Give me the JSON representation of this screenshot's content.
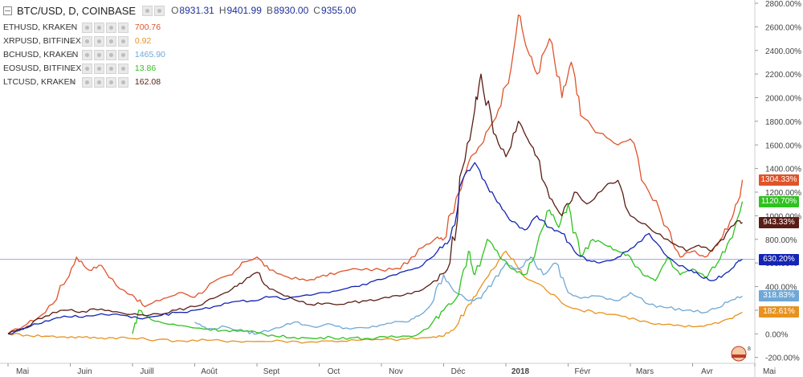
{
  "header": {
    "symbol": "BTC/USD, D, COINBASE",
    "ohlc": [
      {
        "key": "O",
        "value": "8931.31"
      },
      {
        "key": "H",
        "value": "9401.99"
      },
      {
        "key": "B",
        "value": "8930.00"
      },
      {
        "key": "C",
        "value": "9355.00"
      }
    ]
  },
  "legend": [
    {
      "name": "ETHUSD, KRAKEN",
      "value": "700.76",
      "color": "#e0532a"
    },
    {
      "name": "XRPUSD, BITFINEX",
      "value": "0.92",
      "color": "#e8921f"
    },
    {
      "name": "BCHUSD, KRAKEN",
      "value": "1465.90",
      "color": "#6fa8d6"
    },
    {
      "name": "EOSUSD, BITFINEX",
      "value": "13.86",
      "color": "#2fc21f"
    },
    {
      "name": "LTCUSD, KRAKEN",
      "value": "162.08",
      "color": "#5a1c14"
    }
  ],
  "badges": [
    {
      "label": "1304.33%",
      "value": 1304.33,
      "color": "#e0532a"
    },
    {
      "label": "1120.70%",
      "value": 1120.7,
      "color": "#2fc21f"
    },
    {
      "label": "943.33%",
      "value": 943.33,
      "color": "#5a1c14"
    },
    {
      "label": "630.20%",
      "value": 630.2,
      "color": "#1424b4"
    },
    {
      "label": "318.83%",
      "value": 318.83,
      "color": "#6fa8d6"
    },
    {
      "label": "182.61%",
      "value": 182.61,
      "color": "#e8921f"
    }
  ],
  "chart_data": {
    "type": "line",
    "ylim": [
      -250,
      2800
    ],
    "y_ticks": [
      "2800.00%",
      "2600.00%",
      "2400.00%",
      "2200.00%",
      "2000.00%",
      "1800.00%",
      "1600.00%",
      "1400.00%",
      "1200.00%",
      "1000.00%",
      "800.00%",
      "600.00%",
      "400.00%",
      "200.00%",
      "0.00%",
      "-200.00%"
    ],
    "y_tick_values": [
      2800,
      2600,
      2400,
      2200,
      2000,
      1800,
      1600,
      1400,
      1200,
      1000,
      800,
      600,
      400,
      200,
      0,
      -200
    ],
    "x_ticks": [
      "Mai",
      "Juin",
      "Juill",
      "Août",
      "Sept",
      "Oct",
      "Nov",
      "Déc",
      "2018",
      "Févr",
      "Mars",
      "Avr",
      "Mai"
    ],
    "x_tick_positions": [
      0,
      1,
      2,
      3,
      4,
      5,
      6,
      7,
      8,
      9,
      10,
      11,
      12
    ],
    "reference_line": 630.2,
    "series": [
      {
        "name": "ETHUSD, KRAKEN",
        "color": "#e0532a",
        "x": [
          0,
          0.3,
          0.6,
          0.9,
          1.1,
          1.3,
          1.5,
          1.8,
          2.0,
          2.2,
          2.5,
          2.8,
          3.0,
          3.3,
          3.6,
          3.8,
          4.0,
          4.2,
          4.5,
          4.8,
          5.0,
          5.3,
          5.6,
          6.0,
          6.3,
          6.6,
          6.9,
          7.0,
          7.2,
          7.4,
          7.6,
          7.8,
          8.0,
          8.2,
          8.35,
          8.5,
          8.7,
          8.9,
          9.05,
          9.2,
          9.5,
          9.8,
          10.0,
          10.3,
          10.6,
          10.8,
          11.0,
          11.2,
          11.4,
          11.6,
          11.75,
          11.8
        ],
        "y": [
          0,
          80,
          180,
          420,
          650,
          540,
          580,
          380,
          330,
          230,
          300,
          350,
          310,
          440,
          500,
          610,
          650,
          540,
          480,
          450,
          480,
          520,
          550,
          540,
          550,
          720,
          820,
          800,
          1150,
          1450,
          1600,
          1800,
          2100,
          2700,
          2400,
          2200,
          2500,
          2000,
          2300,
          1850,
          1700,
          1600,
          1650,
          1200,
          900,
          650,
          700,
          650,
          750,
          950,
          1150,
          1304
        ]
      },
      {
        "name": "XRPUSD, BITFINEX",
        "color": "#e8921f",
        "x": [
          0,
          0.3,
          0.6,
          0.9,
          1.2,
          1.5,
          1.8,
          2.0,
          2.4,
          2.8,
          3.2,
          3.6,
          4.0,
          4.4,
          4.8,
          5.2,
          5.6,
          6.0,
          6.4,
          6.8,
          7.0,
          7.2,
          7.4,
          7.6,
          7.8,
          8.0,
          8.15,
          8.3,
          8.6,
          8.9,
          9.2,
          9.5,
          9.8,
          10.1,
          10.4,
          10.7,
          11.0,
          11.3,
          11.6,
          11.8
        ],
        "y": [
          0,
          -10,
          -20,
          -25,
          -30,
          -35,
          -30,
          -40,
          -50,
          -60,
          -55,
          -60,
          -65,
          -60,
          -70,
          -60,
          -55,
          -50,
          -45,
          -30,
          -20,
          60,
          250,
          400,
          550,
          700,
          600,
          480,
          400,
          260,
          200,
          180,
          160,
          120,
          80,
          70,
          60,
          80,
          130,
          183
        ]
      },
      {
        "name": "BCHUSD, KRAKEN",
        "color": "#6fa8d6",
        "x": [
          3.0,
          3.2,
          3.5,
          3.8,
          4.0,
          4.3,
          4.6,
          4.9,
          5.2,
          5.5,
          5.8,
          6.1,
          6.4,
          6.6,
          6.8,
          7.0,
          7.2,
          7.4,
          7.6,
          7.8,
          8.0,
          8.2,
          8.4,
          8.6,
          8.8,
          9.0,
          9.2,
          9.5,
          9.8,
          10.0,
          10.3,
          10.6,
          10.9,
          11.2,
          11.4,
          11.6,
          11.8
        ],
        "y": [
          100,
          40,
          60,
          20,
          0,
          50,
          100,
          60,
          80,
          40,
          50,
          90,
          100,
          150,
          250,
          500,
          350,
          280,
          300,
          450,
          600,
          550,
          650,
          500,
          600,
          350,
          300,
          320,
          280,
          350,
          250,
          220,
          200,
          180,
          220,
          280,
          319
        ]
      },
      {
        "name": "EOSUSD, BITFINEX",
        "color": "#2fc21f",
        "x": [
          2.0,
          2.1,
          2.3,
          2.6,
          2.9,
          3.2,
          3.5,
          3.8,
          4.0,
          4.3,
          4.6,
          4.9,
          5.2,
          5.5,
          5.8,
          6.1,
          6.4,
          6.6,
          6.8,
          7.0,
          7.2,
          7.4,
          7.5,
          7.7,
          7.9,
          8.1,
          8.3,
          8.5,
          8.7,
          8.85,
          9.0,
          9.2,
          9.4,
          9.6,
          9.8,
          10.0,
          10.2,
          10.4,
          10.6,
          10.8,
          11.0,
          11.2,
          11.4,
          11.6,
          11.8
        ],
        "y": [
          0,
          200,
          120,
          80,
          60,
          40,
          30,
          20,
          10,
          -20,
          -30,
          -40,
          -30,
          -35,
          -40,
          -30,
          -20,
          0,
          80,
          200,
          300,
          700,
          500,
          800,
          650,
          550,
          500,
          750,
          1050,
          900,
          1100,
          650,
          800,
          750,
          700,
          650,
          500,
          450,
          650,
          500,
          550,
          480,
          600,
          800,
          1121
        ]
      },
      {
        "name": "LTCUSD, KRAKEN",
        "color": "#5a1c14",
        "x": [
          0,
          0.3,
          0.6,
          0.9,
          1.2,
          1.5,
          1.8,
          2.1,
          2.4,
          2.7,
          3.0,
          3.3,
          3.6,
          3.8,
          4.0,
          4.2,
          4.5,
          4.8,
          5.1,
          5.4,
          5.7,
          6.0,
          6.3,
          6.6,
          6.9,
          7.1,
          7.3,
          7.5,
          7.6,
          7.8,
          8.0,
          8.2,
          8.35,
          8.5,
          8.7,
          8.9,
          9.1,
          9.3,
          9.6,
          9.8,
          10.0,
          10.3,
          10.6,
          10.9,
          11.1,
          11.3,
          11.5,
          11.7,
          11.8
        ],
        "y": [
          0,
          60,
          150,
          200,
          190,
          210,
          180,
          160,
          170,
          200,
          230,
          300,
          380,
          450,
          520,
          380,
          320,
          250,
          260,
          250,
          280,
          300,
          320,
          360,
          450,
          600,
          1400,
          1900,
          2200,
          1700,
          1500,
          1800,
          1650,
          1500,
          1150,
          1000,
          1200,
          1100,
          1250,
          1300,
          1000,
          900,
          800,
          700,
          750,
          700,
          800,
          950,
          943
        ]
      },
      {
        "name": "BTCUSD, COINBASE",
        "color": "#1424b4",
        "x": [
          0,
          0.3,
          0.6,
          0.9,
          1.2,
          1.5,
          1.8,
          2.1,
          2.4,
          2.7,
          3.0,
          3.3,
          3.6,
          3.9,
          4.2,
          4.5,
          4.8,
          5.1,
          5.4,
          5.7,
          6.0,
          6.3,
          6.6,
          6.9,
          7.1,
          7.3,
          7.5,
          7.7,
          7.9,
          8.1,
          8.3,
          8.5,
          8.7,
          8.9,
          9.1,
          9.3,
          9.5,
          9.8,
          10.0,
          10.3,
          10.6,
          10.9,
          11.1,
          11.3,
          11.5,
          11.7,
          11.8
        ],
        "y": [
          0,
          50,
          110,
          150,
          140,
          170,
          160,
          130,
          150,
          180,
          200,
          230,
          270,
          280,
          310,
          300,
          330,
          350,
          380,
          420,
          460,
          520,
          560,
          700,
          800,
          1300,
          1450,
          1250,
          1100,
          950,
          880,
          1000,
          900,
          850,
          700,
          620,
          600,
          650,
          720,
          850,
          650,
          550,
          500,
          450,
          500,
          600,
          630
        ]
      }
    ]
  }
}
